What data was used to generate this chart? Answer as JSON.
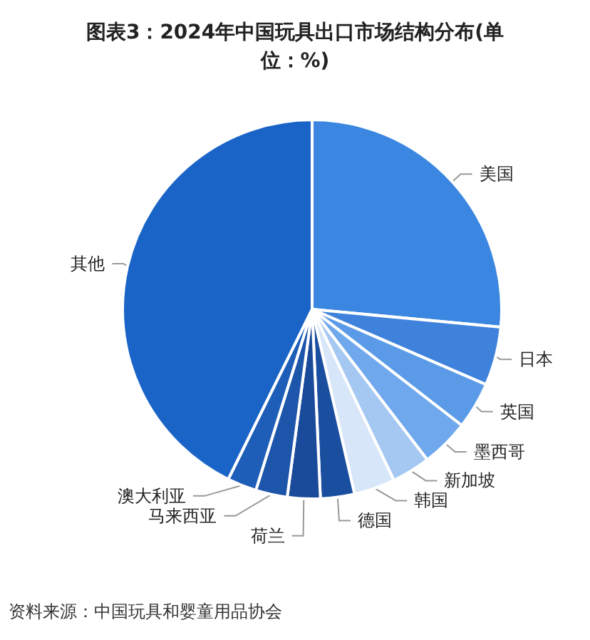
{
  "chart_data": {
    "type": "pie",
    "title": "图表3：2024年中国玩具出口市场结构分布(单位：%)",
    "categories": [
      "美国",
      "日本",
      "英国",
      "墨西哥",
      "新加坡",
      "韩国",
      "德国",
      "荷兰",
      "马来西亚",
      "澳大利亚",
      "其他"
    ],
    "values": [
      26.5,
      5.0,
      4.0,
      4.1,
      3.3,
      3.5,
      2.9,
      2.8,
      2.7,
      2.5,
      42.7
    ],
    "colors": [
      "#3a86e0",
      "#3e82dc",
      "#5a9ae6",
      "#6fa8ec",
      "#a5c8f2",
      "#d7e6f8",
      "#1a4fa0",
      "#1a4a9a",
      "#1d55aa",
      "#1e5eb8",
      "#1a64c8"
    ],
    "annotations": [
      "资料来源：中国玩具和婴童用品协会"
    ]
  }
}
